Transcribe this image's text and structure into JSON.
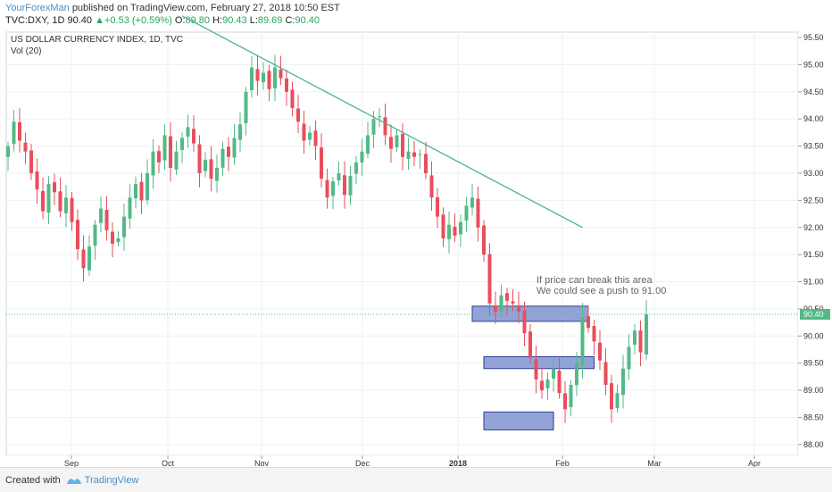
{
  "header": {
    "author": "YourForexMan",
    "published_text": "published on TradingView.com, February 27, 2018 10:50 EST",
    "symbol": "TVC:DXY, 1D",
    "last": "90.40",
    "change_arrow": "▲",
    "change": "+0.53 (+0.59%)",
    "o_label": "O:",
    "o_value": "89.80",
    "h_label": "H:",
    "h_value": "90.43",
    "l_label": "L:",
    "l_value": "89.69",
    "c_label": "C:",
    "c_value": "90.40"
  },
  "footer": {
    "created_with": "Created with",
    "brand": "TradingView"
  },
  "chart_data": {
    "type": "candlestick",
    "title": "US DOLLAR CURRENCY INDEX, 1D, TVC",
    "subtitle": "Vol (20)",
    "ylim": [
      87.8,
      95.6
    ],
    "y_ticks": [
      "88.00",
      "88.50",
      "89.00",
      "89.50",
      "90.00",
      "90.50",
      "91.00",
      "91.50",
      "92.00",
      "92.50",
      "93.00",
      "93.50",
      "94.00",
      "94.50",
      "95.00",
      "95.50"
    ],
    "x_ticks": [
      "Sep",
      "Oct",
      "Nov",
      "Dec",
      "2018",
      "Feb",
      "Mar",
      "Apr"
    ],
    "last_price_label": "90.40",
    "last_price": 90.4,
    "annotation": "If price can break this area\nWe could see a push to 91.00",
    "colors": {
      "up": "#53b987",
      "down": "#eb4d5c",
      "trend": "#3fb08c",
      "zone_fill": "#6d86c9",
      "zone_border": "#2d3d8f",
      "last_line": "#53b987"
    },
    "closes": [
      93.5,
      93.95,
      93.6,
      93.4,
      93.0,
      92.7,
      92.3,
      92.8,
      92.65,
      92.3,
      92.55,
      92.1,
      91.6,
      91.25,
      91.65,
      92.05,
      92.35,
      91.95,
      91.7,
      91.8,
      92.2,
      92.55,
      92.8,
      92.5,
      93.0,
      93.4,
      93.2,
      93.7,
      93.1,
      93.4,
      93.65,
      93.85,
      93.55,
      93.0,
      93.25,
      92.9,
      93.1,
      93.45,
      93.3,
      93.65,
      93.9,
      94.5,
      94.95,
      94.7,
      94.85,
      94.55,
      94.95,
      94.75,
      94.5,
      94.2,
      93.95,
      93.6,
      93.75,
      93.5,
      92.9,
      92.55,
      92.85,
      93.0,
      92.6,
      92.95,
      93.2,
      93.4,
      93.7,
      94.0,
      94.05,
      93.7,
      93.45,
      93.7,
      93.3,
      93.4,
      93.3,
      93.35,
      93.0,
      92.55,
      92.2,
      91.8,
      92.05,
      91.85,
      92.1,
      92.4,
      92.55,
      92.0,
      91.5,
      90.6,
      90.45,
      90.75,
      90.65,
      90.6,
      90.45,
      90.05,
      89.6,
      89.2,
      89.0,
      89.2,
      89.4,
      88.95,
      88.65,
      89.1,
      89.5,
      90.35,
      90.15,
      89.9,
      89.55,
      89.1,
      88.65,
      88.95,
      89.4,
      89.8,
      90.1,
      89.7,
      90.4
    ],
    "trendline": {
      "from_index": 30,
      "from_value": 95.9,
      "to_index": 99,
      "to_value": 92.0
    },
    "zones": [
      {
        "from_index": 80,
        "to_index": 100,
        "top": 90.55,
        "bottom": 90.27
      },
      {
        "from_index": 82,
        "to_index": 101,
        "top": 89.62,
        "bottom": 89.4
      },
      {
        "from_index": 82,
        "to_index": 94,
        "top": 88.6,
        "bottom": 88.27
      }
    ]
  }
}
